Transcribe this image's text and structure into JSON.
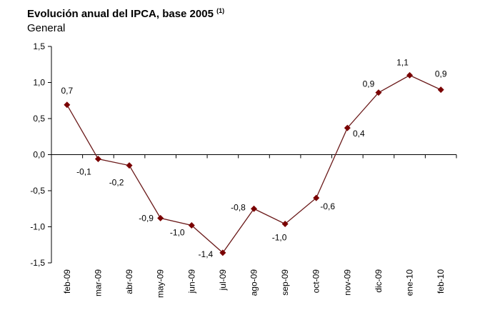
{
  "chart_data": {
    "type": "line",
    "title": "Evolución anual del IPCA, base 2005",
    "title_footnote": "(1)",
    "subtitle": "General",
    "xlabel": "",
    "ylabel": "",
    "ylim": [
      -1.5,
      1.5
    ],
    "yticks": [
      1.5,
      1.0,
      0.5,
      0.0,
      -0.5,
      -1.0,
      -1.5
    ],
    "ytick_labels": [
      "1,5",
      "1,0",
      "0,5",
      "0,0",
      "-0,5",
      "-1,0",
      "-1,5"
    ],
    "grid": false,
    "legend": "none",
    "categories": [
      "feb-09",
      "mar-09",
      "abr-09",
      "may-09",
      "jun-09",
      "jul-09",
      "ago-09",
      "sep-09",
      "oct-09",
      "nov-09",
      "dic-09",
      "ene-10",
      "feb-10"
    ],
    "series": [
      {
        "name": "General",
        "color": "#6b1a1a",
        "marker_color": "#7a0000",
        "values": [
          0.69,
          -0.06,
          -0.15,
          -0.88,
          -0.98,
          -1.36,
          -0.75,
          -0.96,
          -0.6,
          0.37,
          0.86,
          1.1,
          0.9
        ],
        "data_labels": [
          "0,7",
          "-0,1",
          "-0,2",
          "-0,9",
          "-1,0",
          "-1,4",
          "-0,8",
          "-1,0",
          "-0,6",
          "0,4",
          "0,9",
          "1,1",
          "0,9"
        ]
      }
    ]
  }
}
